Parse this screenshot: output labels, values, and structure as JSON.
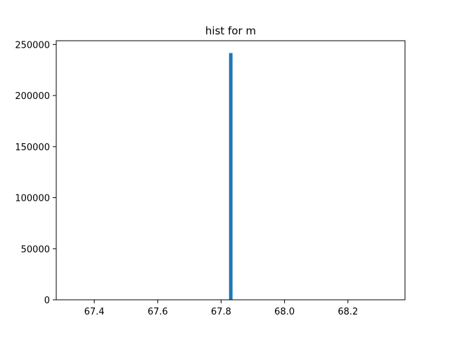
{
  "chart_data": {
    "type": "bar",
    "title": "hist for m",
    "xlabel": "",
    "ylabel": "",
    "xlim": [
      67.28,
      68.38
    ],
    "ylim": [
      0,
      253680
    ],
    "x_ticks": [
      67.4,
      67.6,
      67.8,
      68.0,
      68.2
    ],
    "x_tick_labels": [
      "67.4",
      "67.6",
      "67.8",
      "68.0",
      "68.2"
    ],
    "y_ticks": [
      0,
      50000,
      100000,
      150000,
      200000,
      250000
    ],
    "y_tick_labels": [
      "0",
      "50000",
      "100000",
      "150000",
      "200000",
      "250000"
    ],
    "bars": [
      {
        "x_start": 67.825,
        "x_end": 67.836,
        "value": 241600
      }
    ],
    "bar_color": "#1f77b4",
    "grid": false,
    "legend": "none"
  }
}
